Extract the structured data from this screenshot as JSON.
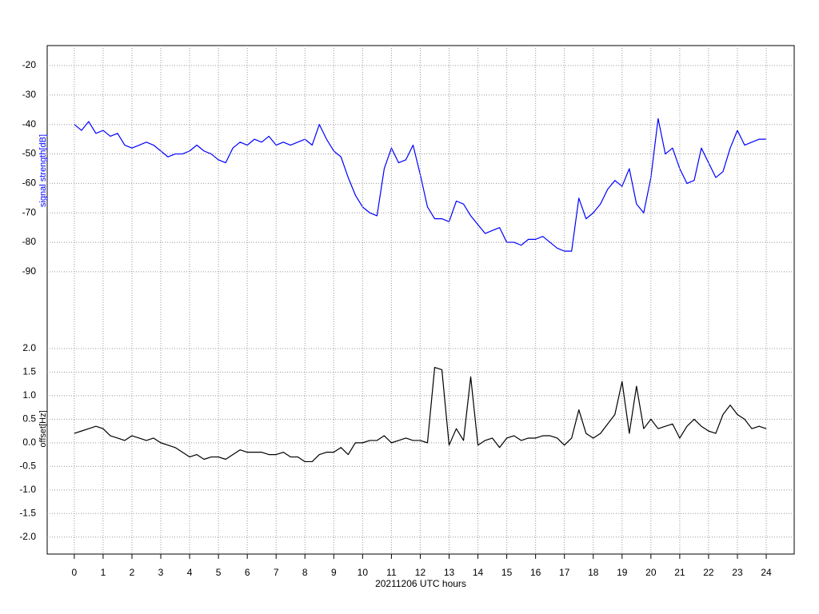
{
  "chart_data": [
    {
      "type": "line",
      "ylabel": "signal strength[dB]",
      "color": "#0000ff",
      "grid": true,
      "xlim": [
        -0.94,
        24.97
      ],
      "ylim": [
        -103.6,
        -13.2
      ],
      "yticks": [
        -20,
        -30,
        -40,
        -50,
        -60,
        -70,
        -80,
        -90
      ],
      "x": [
        0,
        0.25,
        0.5,
        0.75,
        1,
        1.25,
        1.5,
        1.75,
        2,
        2.25,
        2.5,
        2.75,
        3,
        3.25,
        3.5,
        3.75,
        4,
        4.25,
        4.5,
        4.75,
        5,
        5.25,
        5.5,
        5.75,
        6,
        6.25,
        6.5,
        6.75,
        7,
        7.25,
        7.5,
        7.75,
        8,
        8.25,
        8.5,
        8.75,
        9,
        9.25,
        9.5,
        9.75,
        10,
        10.25,
        10.5,
        10.75,
        11,
        11.25,
        11.5,
        11.75,
        12,
        12.25,
        12.5,
        12.75,
        13,
        13.25,
        13.5,
        13.75,
        14,
        14.25,
        14.5,
        14.75,
        15,
        15.25,
        15.5,
        15.75,
        16,
        16.25,
        16.5,
        16.75,
        17,
        17.25,
        17.5,
        17.75,
        18,
        18.25,
        18.5,
        18.75,
        19,
        19.25,
        19.5,
        19.75,
        20,
        20.25,
        20.5,
        20.75,
        21,
        21.25,
        21.5,
        21.75,
        22,
        22.25,
        22.5,
        22.75,
        23,
        23.25,
        23.5,
        23.75,
        24
      ],
      "values": [
        -40,
        -42,
        -39,
        -43,
        -42,
        -44,
        -43,
        -47,
        -48,
        -47,
        -46,
        -47,
        -49,
        -51,
        -50,
        -50,
        -49,
        -47,
        -49,
        -50,
        -52,
        -53,
        -48,
        -46,
        -47,
        -45,
        -46,
        -44,
        -47,
        -46,
        -47,
        -46,
        -45,
        -47,
        -40,
        -45,
        -49,
        -51,
        -58,
        -64,
        -68,
        -70,
        -71,
        -55,
        -48,
        -53,
        -52,
        -47,
        -57,
        -68,
        -72,
        -72,
        -73,
        -66,
        -67,
        -71,
        -74,
        -77,
        -76,
        -75,
        -80,
        -80,
        -81,
        -79,
        -79,
        -78,
        -80,
        -82,
        -83,
        -83,
        -65,
        -72,
        -70,
        -67,
        -62,
        -59,
        -61,
        -55,
        -67,
        -70,
        -58,
        -38,
        -50,
        -48,
        -55,
        -60,
        -59,
        -48,
        -53,
        -58,
        -56,
        -48,
        -42,
        -47,
        -46,
        -45,
        -45
      ]
    },
    {
      "type": "line",
      "ylabel": "offset[Hz]",
      "xlabel": "20211206 UTC hours",
      "color": "#000000",
      "grid": true,
      "xlim": [
        -0.94,
        24.97
      ],
      "xticks": [
        0,
        1,
        2,
        3,
        4,
        5,
        6,
        7,
        8,
        9,
        10,
        11,
        12,
        13,
        14,
        15,
        16,
        17,
        18,
        19,
        20,
        21,
        22,
        23,
        24
      ],
      "ylim": [
        -2.36,
        2.61
      ],
      "yticks": [
        {
          "value": 2,
          "label": "2.0"
        },
        1.5,
        {
          "value": 1,
          "label": "1.0"
        },
        0.5,
        {
          "value": 0,
          "label": "0.0"
        },
        -0.5,
        {
          "value": -1,
          "label": "-1.0"
        },
        -1.5,
        {
          "value": -2,
          "label": "-2.0"
        }
      ],
      "x": [
        0,
        0.25,
        0.5,
        0.75,
        1,
        1.25,
        1.5,
        1.75,
        2,
        2.25,
        2.5,
        2.75,
        3,
        3.25,
        3.5,
        3.75,
        4,
        4.25,
        4.5,
        4.75,
        5,
        5.25,
        5.5,
        5.75,
        6,
        6.25,
        6.5,
        6.75,
        7,
        7.25,
        7.5,
        7.75,
        8,
        8.25,
        8.5,
        8.75,
        9,
        9.25,
        9.5,
        9.75,
        10,
        10.25,
        10.5,
        10.75,
        11,
        11.25,
        11.5,
        11.75,
        12,
        12.25,
        12.5,
        12.75,
        13,
        13.25,
        13.5,
        13.75,
        14,
        14.25,
        14.5,
        14.75,
        15,
        15.25,
        15.5,
        15.75,
        16,
        16.25,
        16.5,
        16.75,
        17,
        17.25,
        17.5,
        17.75,
        18,
        18.25,
        18.5,
        18.75,
        19,
        19.25,
        19.5,
        19.75,
        20,
        20.25,
        20.5,
        20.75,
        21,
        21.25,
        21.5,
        21.75,
        22,
        22.25,
        22.5,
        22.75,
        23,
        23.25,
        23.5,
        23.75,
        24
      ],
      "values": [
        0.2,
        0.25,
        0.3,
        0.35,
        0.3,
        0.15,
        0.1,
        0.05,
        0.15,
        0.1,
        0.05,
        0.1,
        0,
        -0.05,
        -0.1,
        -0.2,
        -0.3,
        -0.25,
        -0.35,
        -0.3,
        -0.3,
        -0.35,
        -0.25,
        -0.15,
        -0.2,
        -0.2,
        -0.2,
        -0.25,
        -0.25,
        -0.2,
        -0.3,
        -0.3,
        -0.4,
        -0.4,
        -0.25,
        -0.2,
        -0.2,
        -0.1,
        -0.25,
        0,
        0,
        0.05,
        0.05,
        0.15,
        0,
        0.05,
        0.1,
        0.05,
        0.05,
        0,
        1.6,
        1.55,
        -0.05,
        0.3,
        0.05,
        1.4,
        -0.05,
        0.05,
        0.1,
        -0.1,
        0.1,
        0.15,
        0.05,
        0.1,
        0.1,
        0.15,
        0.15,
        0.1,
        -0.05,
        0.1,
        0.7,
        0.2,
        0.1,
        0.2,
        0.4,
        0.6,
        1.3,
        0.2,
        1.2,
        0.3,
        0.5,
        0.3,
        0.35,
        0.4,
        0.1,
        0.35,
        0.5,
        0.35,
        0.25,
        0.2,
        0.6,
        0.8,
        0.6,
        0.5,
        0.3,
        0.35,
        0.3
      ]
    }
  ]
}
